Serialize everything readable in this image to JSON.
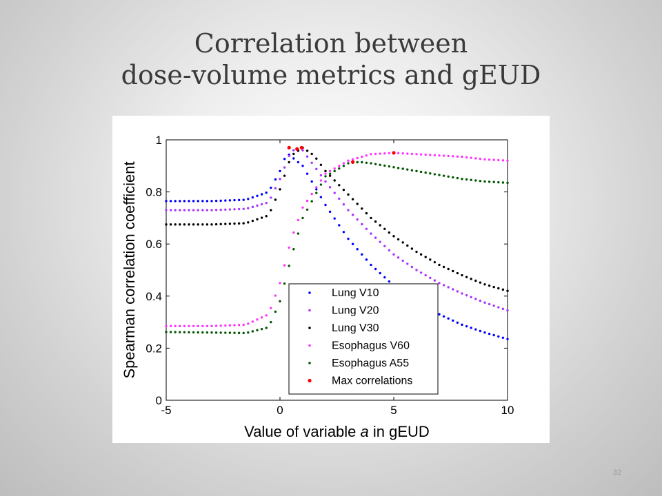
{
  "slide": {
    "title_line1": "Correlation between",
    "title_line2": "dose-volume metrics and gEUD",
    "page_number": "32"
  },
  "chart_data": {
    "type": "scatter",
    "title": "",
    "xlabel_prefix": "Value of variable ",
    "xlabel_var": "a",
    "xlabel_suffix": " in gEUD",
    "ylabel": "Spearman correlation coefficient",
    "xlim": [
      -5,
      10
    ],
    "ylim": [
      0,
      1
    ],
    "xticks": [
      -5,
      0,
      5,
      10
    ],
    "yticks": [
      0,
      0.2,
      0.4,
      0.6,
      0.8,
      1
    ],
    "xtick_labels": [
      "-5",
      "0",
      "5",
      "10"
    ],
    "ytick_labels": [
      "0",
      "0.2",
      "0.4",
      "0.6",
      "0.8",
      "1"
    ],
    "grid": false,
    "legend_position": "bottom-right",
    "series": [
      {
        "name": "Lung V10",
        "color": "#0000ff",
        "points": [
          [
            -5,
            0.765
          ],
          [
            -3,
            0.765
          ],
          [
            -1.5,
            0.77
          ],
          [
            -0.5,
            0.8
          ],
          [
            0,
            0.88
          ],
          [
            0.3,
            0.95
          ],
          [
            1,
            0.9
          ],
          [
            2,
            0.75
          ],
          [
            3,
            0.62
          ],
          [
            4,
            0.52
          ],
          [
            5,
            0.44
          ],
          [
            6,
            0.38
          ],
          [
            7,
            0.33
          ],
          [
            8,
            0.29
          ],
          [
            9,
            0.26
          ],
          [
            10,
            0.235
          ]
        ]
      },
      {
        "name": "Lung V20",
        "color": "#aa33ff",
        "points": [
          [
            -5,
            0.73
          ],
          [
            -3,
            0.73
          ],
          [
            -1.5,
            0.735
          ],
          [
            -0.5,
            0.76
          ],
          [
            0,
            0.85
          ],
          [
            0.5,
            0.96
          ],
          [
            1,
            0.96
          ],
          [
            2,
            0.84
          ],
          [
            3,
            0.73
          ],
          [
            4,
            0.64
          ],
          [
            5,
            0.56
          ],
          [
            6,
            0.5
          ],
          [
            7,
            0.45
          ],
          [
            8,
            0.41
          ],
          [
            9,
            0.375
          ],
          [
            10,
            0.345
          ]
        ]
      },
      {
        "name": "Lung V30",
        "color": "#000000",
        "points": [
          [
            -5,
            0.675
          ],
          [
            -3,
            0.675
          ],
          [
            -1.5,
            0.68
          ],
          [
            -0.5,
            0.71
          ],
          [
            0,
            0.81
          ],
          [
            0.5,
            0.94
          ],
          [
            1,
            0.97
          ],
          [
            1.5,
            0.94
          ],
          [
            2,
            0.88
          ],
          [
            3,
            0.79
          ],
          [
            4,
            0.7
          ],
          [
            5,
            0.63
          ],
          [
            6,
            0.57
          ],
          [
            7,
            0.52
          ],
          [
            8,
            0.48
          ],
          [
            9,
            0.445
          ],
          [
            10,
            0.42
          ]
        ]
      },
      {
        "name": "Esophagus V60",
        "color": "#ff33ff",
        "points": [
          [
            -5,
            0.285
          ],
          [
            -3,
            0.285
          ],
          [
            -1.5,
            0.29
          ],
          [
            -0.5,
            0.33
          ],
          [
            0,
            0.45
          ],
          [
            0.5,
            0.62
          ],
          [
            1,
            0.74
          ],
          [
            2,
            0.87
          ],
          [
            3,
            0.92
          ],
          [
            4,
            0.945
          ],
          [
            5,
            0.95
          ],
          [
            6,
            0.945
          ],
          [
            7,
            0.94
          ],
          [
            8,
            0.935
          ],
          [
            9,
            0.925
          ],
          [
            10,
            0.92
          ]
        ]
      },
      {
        "name": "Esophagus A55",
        "color": "#005500",
        "points": [
          [
            -5,
            0.262
          ],
          [
            -3,
            0.26
          ],
          [
            -1.5,
            0.258
          ],
          [
            -0.5,
            0.28
          ],
          [
            0,
            0.38
          ],
          [
            0.5,
            0.55
          ],
          [
            1,
            0.7
          ],
          [
            2,
            0.86
          ],
          [
            3,
            0.91
          ],
          [
            3.5,
            0.915
          ],
          [
            4,
            0.91
          ],
          [
            5,
            0.895
          ],
          [
            6,
            0.88
          ],
          [
            7,
            0.865
          ],
          [
            8,
            0.85
          ],
          [
            9,
            0.84
          ],
          [
            10,
            0.835
          ]
        ]
      },
      {
        "name": "Max correlations",
        "color": "#ff0000",
        "points": [
          [
            0.4,
            0.97
          ],
          [
            0.75,
            0.965
          ],
          [
            0.95,
            0.97
          ],
          [
            3.2,
            0.915
          ],
          [
            5,
            0.95
          ]
        ]
      }
    ]
  }
}
